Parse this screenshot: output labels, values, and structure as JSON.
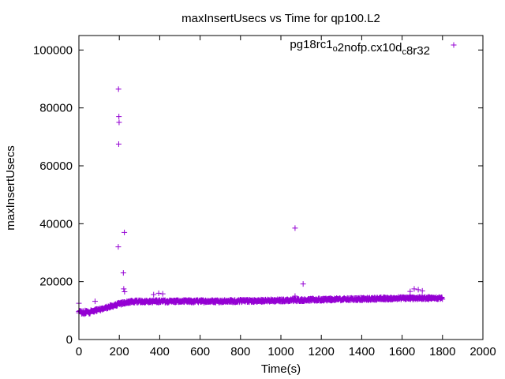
{
  "chart_data": {
    "type": "scatter",
    "title": "maxInsertUsecs vs Time for qp100.L2",
    "xlabel": "Time(s)",
    "ylabel": "maxInsertUsecs",
    "xlim": [
      0,
      2000
    ],
    "ylim": [
      0,
      105000
    ],
    "xticks": [
      0,
      200,
      400,
      600,
      800,
      1000,
      1200,
      1400,
      1600,
      1800,
      2000
    ],
    "yticks": [
      0,
      20000,
      40000,
      60000,
      80000,
      100000
    ],
    "xtick_labels": [
      "0",
      "200",
      "400",
      "600",
      "800",
      "1000",
      "1200",
      "1400",
      "1600",
      "1800",
      "2000"
    ],
    "ytick_labels": [
      "0",
      "20000",
      "40000",
      "60000",
      "80000",
      "100000"
    ],
    "grid": false,
    "legend_position": "top-right",
    "marker": "+",
    "series": [
      {
        "legend_parts": [
          {
            "text": "pg18rc1",
            "sub": false
          },
          {
            "text": "o",
            "sub": true
          },
          {
            "text": "2nofp.cx10d",
            "sub": false
          },
          {
            "text": "c",
            "sub": true
          },
          {
            "text": "8r32",
            "sub": false
          }
        ],
        "color": "#9400d3",
        "baseline": [
          [
            0,
            9500
          ],
          [
            20,
            9200
          ],
          [
            50,
            9600
          ],
          [
            100,
            10300
          ],
          [
            150,
            11300
          ],
          [
            200,
            12300
          ],
          [
            250,
            13000
          ],
          [
            300,
            13200
          ],
          [
            400,
            13200
          ],
          [
            600,
            13200
          ],
          [
            800,
            13300
          ],
          [
            1000,
            13500
          ],
          [
            1200,
            13800
          ],
          [
            1400,
            14000
          ],
          [
            1600,
            14300
          ],
          [
            1700,
            14300
          ],
          [
            1800,
            14300
          ]
        ],
        "outliers": [
          [
            196,
            86500
          ],
          [
            198,
            77000
          ],
          [
            199,
            75000
          ],
          [
            197,
            67500
          ],
          [
            195,
            32000
          ],
          [
            225,
            37000
          ],
          [
            220,
            23000
          ],
          [
            222,
            17500
          ],
          [
            226,
            16500
          ],
          [
            1070,
            38500
          ],
          [
            1110,
            19200
          ],
          [
            1070,
            15000
          ],
          [
            80,
            13200
          ],
          [
            0,
            12500
          ],
          [
            370,
            15500
          ],
          [
            395,
            16000
          ],
          [
            415,
            15800
          ],
          [
            1660,
            17500
          ],
          [
            1680,
            17200
          ],
          [
            1700,
            16800
          ],
          [
            1640,
            16600
          ]
        ]
      }
    ]
  }
}
